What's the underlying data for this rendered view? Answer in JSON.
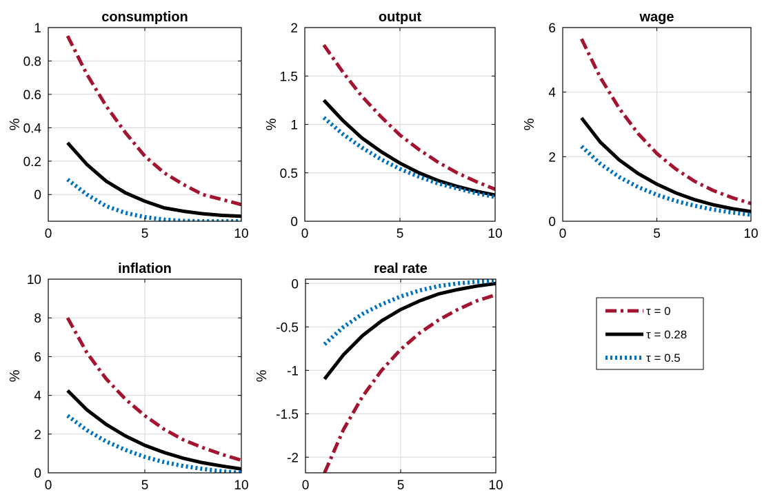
{
  "colors": {
    "tau_0": "#a2142f",
    "tau_028": "#000000",
    "tau_05": "#0072bd",
    "grid": "#dcdcdc"
  },
  "legend": {
    "placement": "right-middle",
    "entries": [
      "τ = 0",
      "τ = 0.28",
      "τ = 0.5"
    ]
  },
  "chart_data": [
    {
      "type": "line",
      "title": "consumption",
      "ylabel": "%",
      "xlim": [
        0,
        10
      ],
      "ylim": [
        -0.16,
        1
      ],
      "xticks": [
        0,
        5,
        10
      ],
      "xtick_labels": [
        "0",
        "5",
        "10"
      ],
      "yticks": [
        0,
        0.2,
        0.4,
        0.6,
        0.8,
        1
      ],
      "ytick_labels": [
        "0",
        "0.2",
        "0.4",
        "0.6",
        "0.8",
        "1"
      ],
      "grid": true,
      "x": [
        1,
        2,
        3,
        4,
        5,
        6,
        7,
        8,
        9,
        10
      ],
      "series": [
        {
          "name": "τ = 0",
          "style": "dashdot",
          "values": [
            0.95,
            0.72,
            0.53,
            0.37,
            0.23,
            0.13,
            0.06,
            0.0,
            -0.03,
            -0.06
          ]
        },
        {
          "name": "τ = 0.28",
          "style": "solid",
          "values": [
            0.31,
            0.18,
            0.08,
            0.01,
            -0.04,
            -0.08,
            -0.1,
            -0.115,
            -0.125,
            -0.13
          ]
        },
        {
          "name": "τ = 0.5",
          "style": "dotted",
          "values": [
            0.09,
            0.0,
            -0.07,
            -0.11,
            -0.135,
            -0.15,
            -0.158,
            -0.16,
            -0.16,
            -0.16
          ]
        }
      ]
    },
    {
      "type": "line",
      "title": "output",
      "ylabel": "%",
      "xlim": [
        0,
        10
      ],
      "ylim": [
        0,
        2
      ],
      "xticks": [
        0,
        5,
        10
      ],
      "xtick_labels": [
        "0",
        "5",
        "10"
      ],
      "yticks": [
        0,
        0.5,
        1,
        1.5,
        2
      ],
      "ytick_labels": [
        "0",
        "0.5",
        "1",
        "1.5",
        "2"
      ],
      "grid": true,
      "x": [
        1,
        2,
        3,
        4,
        5,
        6,
        7,
        8,
        9,
        10
      ],
      "series": [
        {
          "name": "τ = 0",
          "style": "dashdot",
          "values": [
            1.82,
            1.54,
            1.29,
            1.08,
            0.89,
            0.74,
            0.61,
            0.5,
            0.41,
            0.33
          ]
        },
        {
          "name": "τ = 0.28",
          "style": "solid",
          "values": [
            1.25,
            1.04,
            0.86,
            0.72,
            0.6,
            0.5,
            0.42,
            0.36,
            0.31,
            0.27
          ]
        },
        {
          "name": "τ = 0.5",
          "style": "dotted",
          "values": [
            1.07,
            0.9,
            0.76,
            0.64,
            0.54,
            0.46,
            0.39,
            0.34,
            0.29,
            0.25
          ]
        }
      ]
    },
    {
      "type": "line",
      "title": "wage",
      "ylabel": "%",
      "xlim": [
        0,
        10
      ],
      "ylim": [
        0,
        6
      ],
      "xticks": [
        0,
        5,
        10
      ],
      "xtick_labels": [
        "0",
        "5",
        "10"
      ],
      "yticks": [
        0,
        2,
        4,
        6
      ],
      "ytick_labels": [
        "0",
        "2",
        "4",
        "6"
      ],
      "grid": true,
      "x": [
        1,
        2,
        3,
        4,
        5,
        6,
        7,
        8,
        9,
        10
      ],
      "series": [
        {
          "name": "τ = 0",
          "style": "dashdot",
          "values": [
            5.65,
            4.45,
            3.5,
            2.72,
            2.1,
            1.62,
            1.24,
            0.95,
            0.73,
            0.55
          ]
        },
        {
          "name": "τ = 0.28",
          "style": "solid",
          "values": [
            3.2,
            2.45,
            1.9,
            1.48,
            1.15,
            0.88,
            0.67,
            0.51,
            0.39,
            0.3
          ]
        },
        {
          "name": "τ = 0.5",
          "style": "dotted",
          "values": [
            2.32,
            1.78,
            1.37,
            1.06,
            0.82,
            0.63,
            0.48,
            0.36,
            0.27,
            0.2
          ]
        }
      ]
    },
    {
      "type": "line",
      "title": "inflation",
      "ylabel": "%",
      "xlim": [
        0,
        10
      ],
      "ylim": [
        0,
        10
      ],
      "xticks": [
        0,
        5,
        10
      ],
      "xtick_labels": [
        "0",
        "5",
        "10"
      ],
      "yticks": [
        0,
        2,
        4,
        6,
        8,
        10
      ],
      "ytick_labels": [
        "0",
        "2",
        "4",
        "6",
        "8",
        "10"
      ],
      "grid": true,
      "x": [
        1,
        2,
        3,
        4,
        5,
        6,
        7,
        8,
        9,
        10
      ],
      "series": [
        {
          "name": "τ = 0",
          "style": "dashdot",
          "values": [
            8.0,
            6.2,
            4.85,
            3.8,
            2.95,
            2.25,
            1.7,
            1.3,
            0.95,
            0.65
          ]
        },
        {
          "name": "τ = 0.28",
          "style": "solid",
          "values": [
            4.25,
            3.25,
            2.5,
            1.9,
            1.42,
            1.05,
            0.75,
            0.52,
            0.35,
            0.2
          ]
        },
        {
          "name": "τ = 0.5",
          "style": "dotted",
          "values": [
            2.95,
            2.2,
            1.62,
            1.18,
            0.82,
            0.55,
            0.35,
            0.2,
            0.08,
            0.0
          ]
        }
      ]
    },
    {
      "type": "line",
      "title": "real rate",
      "ylabel": "%",
      "xlim": [
        0,
        10
      ],
      "ylim": [
        -2.18,
        0.05
      ],
      "xticks": [
        0,
        5,
        10
      ],
      "xtick_labels": [
        "0",
        "5",
        "10"
      ],
      "yticks": [
        -2,
        -1.5,
        -1,
        -0.5,
        0
      ],
      "ytick_labels": [
        "-2",
        "-1.5",
        "-1",
        "-0.5",
        "0"
      ],
      "grid": true,
      "x": [
        1,
        2,
        3,
        4,
        5,
        6,
        7,
        8,
        9,
        10
      ],
      "series": [
        {
          "name": "τ = 0",
          "style": "dashdot",
          "values": [
            -2.18,
            -1.68,
            -1.3,
            -1.0,
            -0.76,
            -0.57,
            -0.42,
            -0.3,
            -0.2,
            -0.13
          ]
        },
        {
          "name": "τ = 0.28",
          "style": "solid",
          "values": [
            -1.1,
            -0.82,
            -0.6,
            -0.43,
            -0.3,
            -0.2,
            -0.12,
            -0.07,
            -0.03,
            0.0
          ]
        },
        {
          "name": "τ = 0.5",
          "style": "dotted",
          "values": [
            -0.7,
            -0.5,
            -0.35,
            -0.24,
            -0.15,
            -0.08,
            -0.03,
            0.0,
            0.02,
            0.03
          ]
        }
      ]
    }
  ]
}
